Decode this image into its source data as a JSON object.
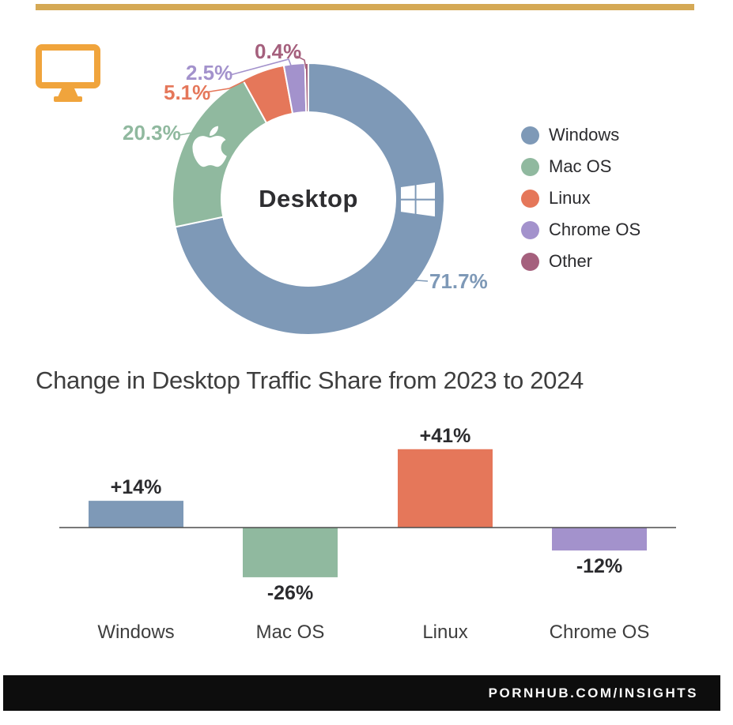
{
  "header": {
    "rule_color": "#d5a955",
    "icon": "desktop-monitor-icon",
    "icon_color": "#f0a43c"
  },
  "footer": {
    "text": "PORNHUB.COM/INSIGHTS",
    "bg_color": "#0d0d0d",
    "text_color": "#fafafa"
  },
  "chart_data": [
    {
      "type": "pie",
      "subtype": "donut",
      "center_label": "Desktop",
      "labels": [
        "Windows",
        "Mac OS",
        "Linux",
        "Chrome OS",
        "Other"
      ],
      "values": [
        71.7,
        20.3,
        5.1,
        2.5,
        0.4
      ],
      "value_labels": [
        "71.7%",
        "20.3%",
        "5.1%",
        "2.5%",
        "0.4%"
      ],
      "colors": [
        "#7e99b7",
        "#90b99f",
        "#e5775a",
        "#a392cc",
        "#a5607d"
      ],
      "start_angle_deg": 0,
      "direction": "clockwise",
      "legend_position": "right",
      "slice_icons": [
        "windows-logo-icon",
        "apple-logo-icon",
        null,
        null,
        null
      ]
    },
    {
      "type": "bar",
      "title": "Change in Desktop Traffic Share from 2023 to 2024",
      "categories": [
        "Windows",
        "Mac OS",
        "Linux",
        "Chrome OS"
      ],
      "values": [
        14,
        -26,
        41,
        -12
      ],
      "value_labels": [
        "+14%",
        "-26%",
        "+41%",
        "-12%"
      ],
      "colors": [
        "#7e99b7",
        "#90b99f",
        "#e5775a",
        "#a392cc"
      ],
      "ylim": [
        -30,
        45
      ],
      "baseline": 0,
      "grid": false,
      "axis_color": "#4d4d4d",
      "text_color": "#2b2b2e",
      "category_color": "#3e3e3e"
    }
  ]
}
